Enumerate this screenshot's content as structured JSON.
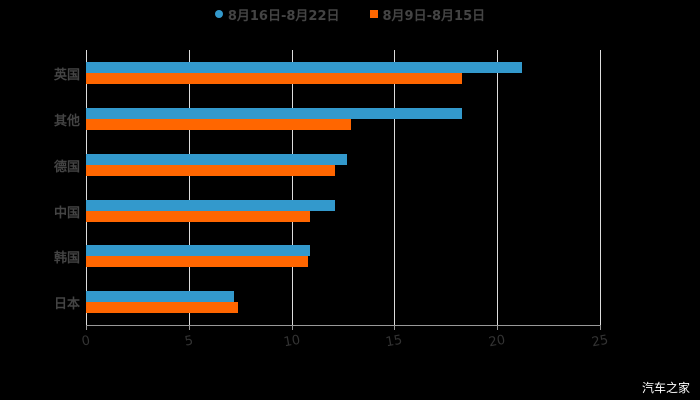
{
  "chart_data": {
    "type": "bar",
    "orientation": "horizontal",
    "title": "",
    "xlabel": "",
    "ylabel": "",
    "categories": [
      "英国",
      "其他",
      "德国",
      "中国",
      "韩国",
      "日本"
    ],
    "series": [
      {
        "name": "8月16日-8月22日",
        "color": "#3399cc",
        "values": [
          21.2,
          18.3,
          12.7,
          12.1,
          10.9,
          7.2
        ]
      },
      {
        "name": "8月9日-8月15日",
        "color": "#ff6600",
        "values": [
          18.3,
          12.9,
          12.1,
          10.9,
          10.8,
          7.4
        ]
      }
    ],
    "xlim": [
      0,
      25
    ],
    "xticks": [
      "0",
      "5",
      "10",
      "15",
      "20",
      "25"
    ],
    "grid": true,
    "legend_position": "top"
  },
  "legend": {
    "series_a": "8月16日-8月22日",
    "series_b": "8月9日-8月15日"
  },
  "watermark": "汽车之家"
}
